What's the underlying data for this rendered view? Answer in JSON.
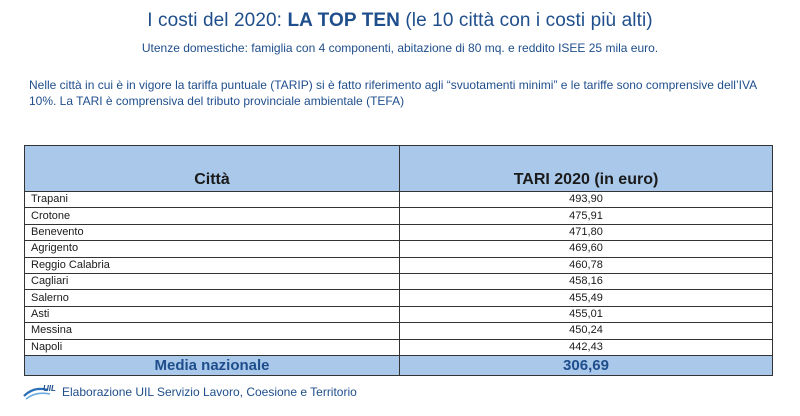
{
  "header": {
    "title_prefix": "I costi del 2020: ",
    "title_strong": "LA TOP TEN",
    "title_suffix": " (le 10 città con i costi più alti)",
    "subtitle": "Utenze domestiche: famiglia con 4 componenti, abitazione di 80 mq. e reddito ISEE 25 mila euro."
  },
  "note": "Nelle città in cui è in vigore la tariffa puntuale (TARIP) si è fatto riferimento agli “svuotamenti minimi” e le tariffe sono comprensive dell’IVA 10%. La TARI è comprensiva del tributo provinciale ambientale (TEFA)",
  "table": {
    "columns": [
      "Città",
      "TARI 2020 (in euro)"
    ],
    "rows": [
      {
        "city": "Trapani",
        "value": "493,90"
      },
      {
        "city": "Crotone",
        "value": "475,91"
      },
      {
        "city": "Benevento",
        "value": "471,80"
      },
      {
        "city": "Agrigento",
        "value": "469,60"
      },
      {
        "city": "Reggio Calabria",
        "value": "460,78"
      },
      {
        "city": "Cagliari",
        "value": "458,16"
      },
      {
        "city": "Salerno",
        "value": "455,49"
      },
      {
        "city": "Asti",
        "value": "455,01"
      },
      {
        "city": "Messina",
        "value": "450,24"
      },
      {
        "city": "Napoli",
        "value": "442,43"
      }
    ],
    "average": {
      "label": "Media nazionale",
      "value": "306,69"
    }
  },
  "footer": {
    "logo_text": "UIL",
    "text": "Elaborazione UIL Servizio Lavoro, Coesione e Territorio"
  },
  "colors": {
    "accent": "#1f4e8c",
    "header_fill": "#a9c8ea"
  },
  "icons": {
    "logo": "uil-logo"
  }
}
